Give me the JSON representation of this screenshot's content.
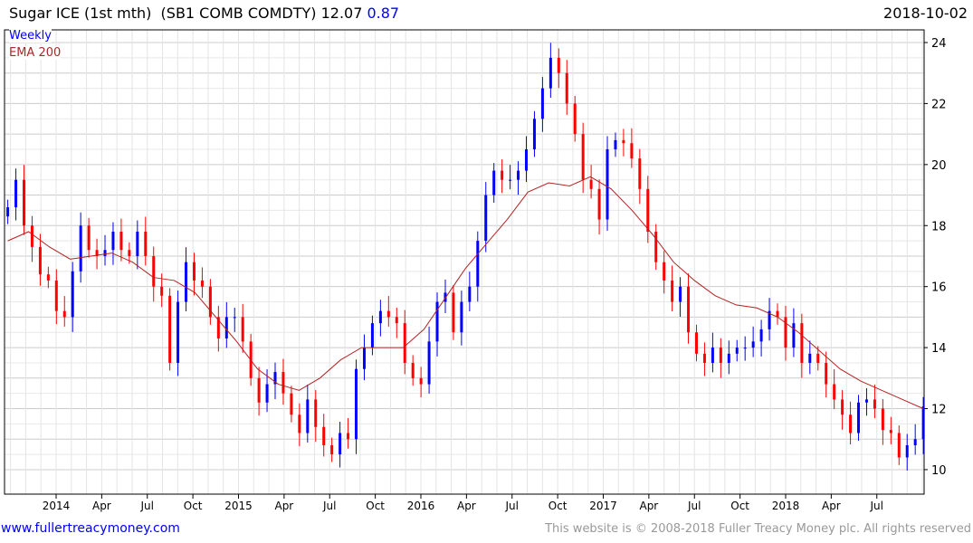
{
  "header": {
    "title": "Sugar ICE (1st mth)  (SB1 COMB COMDTY) 12.07",
    "change": "0.87",
    "date": "2018-10-02"
  },
  "legend": {
    "series": "Weekly",
    "ema": "EMA 200"
  },
  "footer": {
    "site": "www.fullertreacymoney.com",
    "copyright": "This website is © 2008-2018 Fuller Treacy Money plc. All rights reserved"
  },
  "colors": {
    "up": "#0000ff",
    "down": "#ff0000",
    "ema": "#b22222",
    "grid": "#dddddd"
  },
  "chart_data": {
    "type": "candlestick",
    "title": "Sugar ICE (1st mth)",
    "ylim": [
      9.4,
      24.4
    ],
    "xlim": [
      2013.7,
      2018.78
    ],
    "y_ticks": [
      "10",
      "12",
      "14",
      "16",
      "18",
      "20",
      "22",
      "24"
    ],
    "x_ticks": [
      {
        "t": 2014.0,
        "label": "2014"
      },
      {
        "t": 2014.25,
        "label": "Apr"
      },
      {
        "t": 2014.5,
        "label": "Jul"
      },
      {
        "t": 2014.75,
        "label": "Oct"
      },
      {
        "t": 2015.0,
        "label": "2015"
      },
      {
        "t": 2015.25,
        "label": "Apr"
      },
      {
        "t": 2015.5,
        "label": "Jul"
      },
      {
        "t": 2015.75,
        "label": "Oct"
      },
      {
        "t": 2016.0,
        "label": "2016"
      },
      {
        "t": 2016.25,
        "label": "Apr"
      },
      {
        "t": 2016.5,
        "label": "Jul"
      },
      {
        "t": 2016.75,
        "label": "Oct"
      },
      {
        "t": 2017.0,
        "label": "2017"
      },
      {
        "t": 2017.25,
        "label": "Apr"
      },
      {
        "t": 2017.5,
        "label": "Jul"
      },
      {
        "t": 2017.75,
        "label": "Oct"
      },
      {
        "t": 2018.0,
        "label": "2018"
      },
      {
        "t": 2018.25,
        "label": "Apr"
      },
      {
        "t": 2018.5,
        "label": "Jul"
      }
    ],
    "start": 2013.735,
    "end": 2018.755,
    "closes": [
      18.6,
      19.5,
      18.0,
      17.3,
      16.4,
      16.2,
      15.2,
      15.0,
      16.5,
      18.0,
      17.2,
      17.0,
      17.2,
      17.8,
      17.2,
      17.0,
      17.8,
      17.0,
      16.0,
      15.7,
      13.5,
      15.5,
      16.8,
      16.2,
      16.0,
      15.0,
      14.3,
      15.0,
      15.0,
      14.2,
      13.0,
      12.2,
      12.8,
      13.2,
      12.5,
      11.8,
      11.2,
      12.3,
      11.4,
      10.8,
      10.5,
      11.2,
      11.0,
      13.3,
      14.0,
      14.8,
      15.2,
      15.0,
      14.8,
      13.5,
      13.0,
      12.8,
      14.2,
      15.5,
      15.8,
      14.5,
      15.5,
      16.0,
      17.5,
      19.0,
      19.8,
      19.5,
      19.5,
      19.8,
      20.5,
      21.5,
      22.5,
      23.5,
      23.0,
      22.0,
      21.0,
      19.5,
      19.2,
      18.2,
      20.5,
      20.8,
      20.7,
      20.2,
      19.2,
      17.8,
      16.8,
      16.2,
      15.5,
      16.0,
      14.5,
      13.8,
      13.5,
      14.0,
      13.5,
      13.8,
      14.0,
      14.0,
      14.2,
      14.6,
      15.2,
      15.0,
      14.0,
      14.8,
      13.5,
      13.8,
      13.5,
      12.8,
      12.3,
      11.8,
      11.2,
      12.2,
      12.3,
      12.0,
      11.3,
      11.2,
      10.4,
      10.8,
      11.0,
      12.07
    ],
    "ema200": [
      17.5,
      17.8,
      17.3,
      16.9,
      17.0,
      17.1,
      16.8,
      16.3,
      16.2,
      15.8,
      15.0,
      14.2,
      13.3,
      12.8,
      12.6,
      13.0,
      13.6,
      14.0,
      14.0,
      14.0,
      14.6,
      15.6,
      16.6,
      17.4,
      18.2,
      19.1,
      19.4,
      19.3,
      19.6,
      19.2,
      18.5,
      17.7,
      16.8,
      16.2,
      15.7,
      15.4,
      15.3,
      15.0,
      14.5,
      13.9,
      13.3,
      12.9,
      12.6,
      12.3,
      12.0
    ]
  }
}
